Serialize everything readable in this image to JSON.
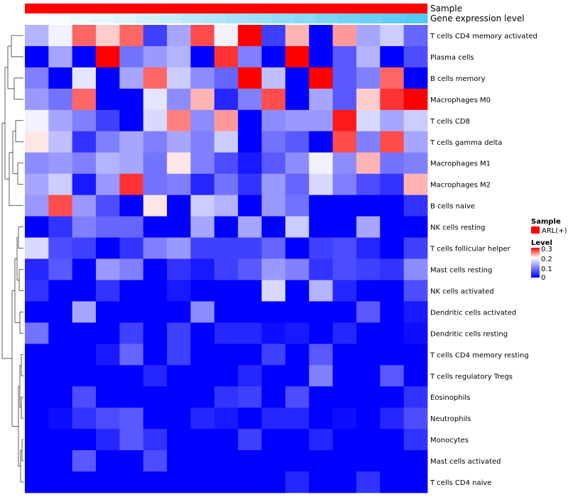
{
  "chart_data": {
    "type": "heatmap",
    "annotations": [
      {
        "name": "Sample",
        "value": "ARL(+)",
        "color": "#ff0000"
      },
      {
        "name": "Gene expression level",
        "low_color": "#ffffff",
        "high_color": "#56c8f4"
      }
    ],
    "expression_gradient": [
      0.02,
      0.05,
      0.1,
      0.15,
      0.2,
      0.27,
      0.33,
      0.4,
      0.46,
      0.52,
      0.58,
      0.64,
      0.7,
      0.76,
      0.82,
      0.88,
      0.94,
      1.0
    ],
    "rows": [
      {
        "label": "T cells CD4 memory activated",
        "values": [
          0.14,
          0.19,
          0.26,
          0.22,
          0.26,
          0.05,
          0.13,
          0.27,
          0.19,
          0.3,
          0.05,
          0.23,
          0.0,
          0.24,
          0.13,
          0.16,
          0.08
        ]
      },
      {
        "label": "Plasma cells",
        "values": [
          0.0,
          0.13,
          0.0,
          0.3,
          0.09,
          0.12,
          0.14,
          0.0,
          0.28,
          0.1,
          0.0,
          0.3,
          0.0,
          0.07,
          0.14,
          0.0,
          0.06
        ]
      },
      {
        "label": "B cells memory",
        "values": [
          0.1,
          0.0,
          0.18,
          0.0,
          0.13,
          0.26,
          0.16,
          0.11,
          0.08,
          0.3,
          0.15,
          0.0,
          0.3,
          0.07,
          0.1,
          0.26,
          0.0
        ]
      },
      {
        "label": "Macrophages M0",
        "values": [
          0.12,
          0.09,
          0.26,
          0.0,
          0.0,
          0.18,
          0.11,
          0.23,
          0.03,
          0.1,
          0.27,
          0.0,
          0.13,
          0.07,
          0.22,
          0.28,
          0.3
        ]
      },
      {
        "label": "T cells CD8",
        "values": [
          0.19,
          0.13,
          0.1,
          0.05,
          0.0,
          0.17,
          0.25,
          0.11,
          0.24,
          0.0,
          0.11,
          0.12,
          0.12,
          0.29,
          0.17,
          0.13,
          0.16
        ]
      },
      {
        "label": "T cells gamma delta",
        "values": [
          0.21,
          0.15,
          0.04,
          0.1,
          0.13,
          0.1,
          0.13,
          0.1,
          0.16,
          0.0,
          0.09,
          0.07,
          0.0,
          0.27,
          0.1,
          0.27,
          0.13
        ]
      },
      {
        "label": "Macrophages M1",
        "values": [
          0.11,
          0.12,
          0.1,
          0.14,
          0.13,
          0.09,
          0.21,
          0.1,
          0.06,
          0.02,
          0.07,
          0.11,
          0.19,
          0.11,
          0.23,
          0.09,
          0.1
        ]
      },
      {
        "label": "Macrophages M2",
        "values": [
          0.13,
          0.16,
          0.02,
          0.12,
          0.28,
          0.09,
          0.1,
          0.03,
          0.09,
          0.04,
          0.12,
          0.08,
          0.17,
          0.1,
          0.06,
          0.04,
          0.23
        ]
      },
      {
        "label": "B cells naive",
        "values": [
          0.12,
          0.27,
          0.12,
          0.06,
          0.0,
          0.21,
          0.0,
          0.16,
          0.14,
          0.0,
          0.12,
          0.09,
          0.0,
          0.0,
          0.0,
          0.0,
          0.04
        ]
      },
      {
        "label": "NK cells resting",
        "values": [
          0.0,
          0.04,
          0.1,
          0.08,
          0.08,
          0.0,
          0.0,
          0.13,
          0.0,
          0.13,
          0.0,
          0.16,
          0.0,
          0.0,
          0.13,
          0.0,
          0.0
        ]
      },
      {
        "label": "T cells follicular helper",
        "values": [
          0.17,
          0.06,
          0.05,
          0.0,
          0.04,
          0.1,
          0.12,
          0.05,
          0.05,
          0.05,
          0.08,
          0.0,
          0.05,
          0.06,
          0.03,
          0.0,
          0.05
        ]
      },
      {
        "label": "Mast cells resting",
        "values": [
          0.03,
          0.07,
          0.0,
          0.12,
          0.1,
          0.0,
          0.04,
          0.02,
          0.05,
          0.07,
          0.12,
          0.1,
          0.04,
          0.06,
          0.05,
          0.04,
          0.11
        ]
      },
      {
        "label": "NK cells activated",
        "values": [
          0.04,
          0.0,
          0.0,
          0.04,
          0.0,
          0.0,
          0.02,
          0.0,
          0.0,
          0.0,
          0.17,
          0.0,
          0.14,
          0.03,
          0.0,
          0.0,
          0.06
        ]
      },
      {
        "label": "Dendritic cells activated",
        "values": [
          0.0,
          0.0,
          0.13,
          0.0,
          0.0,
          0.0,
          0.0,
          0.11,
          0.0,
          0.0,
          0.0,
          0.0,
          0.0,
          0.0,
          0.07,
          0.0,
          0.02
        ]
      },
      {
        "label": "Dendritic cells resting",
        "values": [
          0.09,
          0.0,
          0.0,
          0.0,
          0.05,
          0.0,
          0.05,
          0.0,
          0.03,
          0.03,
          0.01,
          0.02,
          0.0,
          0.03,
          0.0,
          0.0,
          0.01
        ]
      },
      {
        "label": "T cells CD4 memory resting",
        "values": [
          0.0,
          0.0,
          0.0,
          0.02,
          0.08,
          0.0,
          0.05,
          0.0,
          0.0,
          0.0,
          0.05,
          0.0,
          0.07,
          0.0,
          0.0,
          0.0,
          0.0
        ]
      },
      {
        "label": "T cells regulatory  Tregs",
        "values": [
          0.0,
          0.0,
          0.0,
          0.0,
          0.0,
          0.03,
          0.0,
          0.0,
          0.0,
          0.03,
          0.0,
          0.0,
          0.1,
          0.0,
          0.0,
          0.07,
          0.0
        ]
      },
      {
        "label": "Eosinophils",
        "values": [
          0.0,
          0.0,
          0.06,
          0.0,
          0.0,
          0.0,
          0.0,
          0.0,
          0.04,
          0.05,
          0.0,
          0.06,
          0.0,
          0.0,
          0.0,
          0.0,
          0.04
        ]
      },
      {
        "label": "Neutrophils",
        "values": [
          0.0,
          0.01,
          0.04,
          0.06,
          0.07,
          0.0,
          0.0,
          0.03,
          0.02,
          0.0,
          0.03,
          0.03,
          0.0,
          0.01,
          0.0,
          0.03,
          0.06
        ]
      },
      {
        "label": "Monocytes",
        "values": [
          0.0,
          0.0,
          0.0,
          0.03,
          0.07,
          0.04,
          0.0,
          0.0,
          0.0,
          0.05,
          0.0,
          0.0,
          0.03,
          0.0,
          0.0,
          0.0,
          0.04
        ]
      },
      {
        "label": "Mast cells activated",
        "values": [
          0.0,
          0.0,
          0.07,
          0.0,
          0.0,
          0.06,
          0.0,
          0.0,
          0.0,
          0.0,
          0.0,
          0.0,
          0.0,
          0.0,
          0.0,
          0.0,
          0.0
        ]
      },
      {
        "label": "T cells CD4 naive",
        "values": [
          0.0,
          0.0,
          0.0,
          0.0,
          0.0,
          0.0,
          0.0,
          0.0,
          0.0,
          0.0,
          0.0,
          0.03,
          0.0,
          0.0,
          0.04,
          0.0,
          0.0
        ]
      }
    ],
    "color_scale": {
      "low": "#0000ff",
      "mid": "#ffffff",
      "high": "#ff0000",
      "min": 0,
      "mid_value": 0.2,
      "max": 0.3
    },
    "legend": {
      "sample_title": "Sample",
      "sample_entry": "ARL(+)",
      "level_title": "Level",
      "level_ticks": [
        "0.3",
        "0.2",
        "0.1",
        "0"
      ]
    }
  }
}
